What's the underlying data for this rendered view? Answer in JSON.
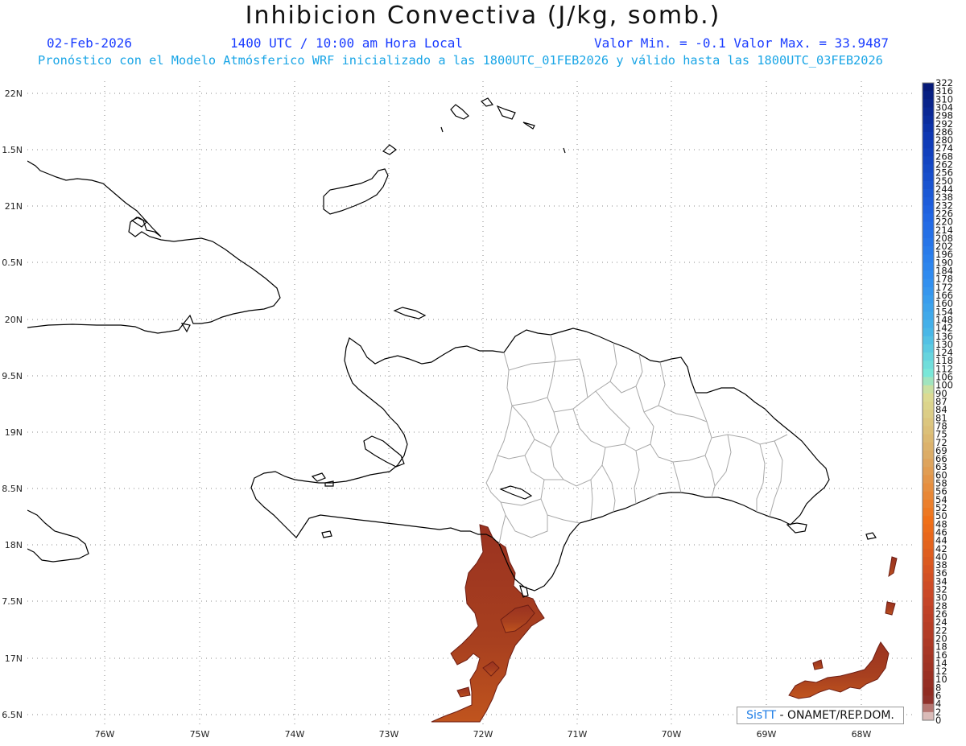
{
  "header": {
    "title": "Inhibicion Convectiva (J/kg, somb.)",
    "date": "02-Feb-2026",
    "time": "1400 UTC / 10:00 am Hora Local",
    "minmax": "Valor Min. = -0.1  Valor Max. = 33.9487",
    "forecast": "Pronóstico con el Modelo Atmósferico WRF inicializado a las 1800UTC_01FEB2026 y válido hasta las  1800UTC_03FEB2026"
  },
  "axes": {
    "lon_labels": [
      "76W",
      "75W",
      "74W",
      "73W",
      "72W",
      "71W",
      "70W",
      "69W",
      "68W"
    ],
    "lat_labels": [
      "22N",
      "1.5N",
      "21N",
      "0.5N",
      "20N",
      "9.5N",
      "19N",
      "8.5N",
      "18N",
      "7.5N",
      "17N",
      "6.5N"
    ]
  },
  "colorbar": {
    "labels": [
      "322",
      "316",
      "310",
      "304",
      "298",
      "292",
      "286",
      "280",
      "274",
      "268",
      "262",
      "256",
      "250",
      "244",
      "238",
      "232",
      "226",
      "220",
      "214",
      "208",
      "202",
      "196",
      "190",
      "184",
      "178",
      "172",
      "166",
      "160",
      "154",
      "148",
      "142",
      "136",
      "130",
      "124",
      "118",
      "112",
      "106",
      "100",
      "90",
      "87",
      "84",
      "81",
      "78",
      "75",
      "72",
      "69",
      "66",
      "63",
      "60",
      "58",
      "56",
      "54",
      "52",
      "50",
      "48",
      "46",
      "44",
      "42",
      "40",
      "38",
      "36",
      "34",
      "32",
      "30",
      "28",
      "26",
      "24",
      "22",
      "20",
      "18",
      "16",
      "14",
      "12",
      "10",
      "8",
      "6",
      "4",
      "2",
      "0"
    ],
    "colors": {
      "blue_top": "#061a78",
      "blue_mid": "#2f8cf0",
      "cyan": "#7ae8d8",
      "yellow": "#dcd89a",
      "orange": "#f07018",
      "red_dark": "#8c2a22"
    }
  },
  "credit": {
    "brand": "SisTT",
    "text": "- ONAMET/REP.DOM."
  },
  "map_colors": {
    "coast": "#000000",
    "provinces": "#a8a8a8",
    "shading": "#a63a20",
    "shading_edge": "#6e1e14"
  }
}
